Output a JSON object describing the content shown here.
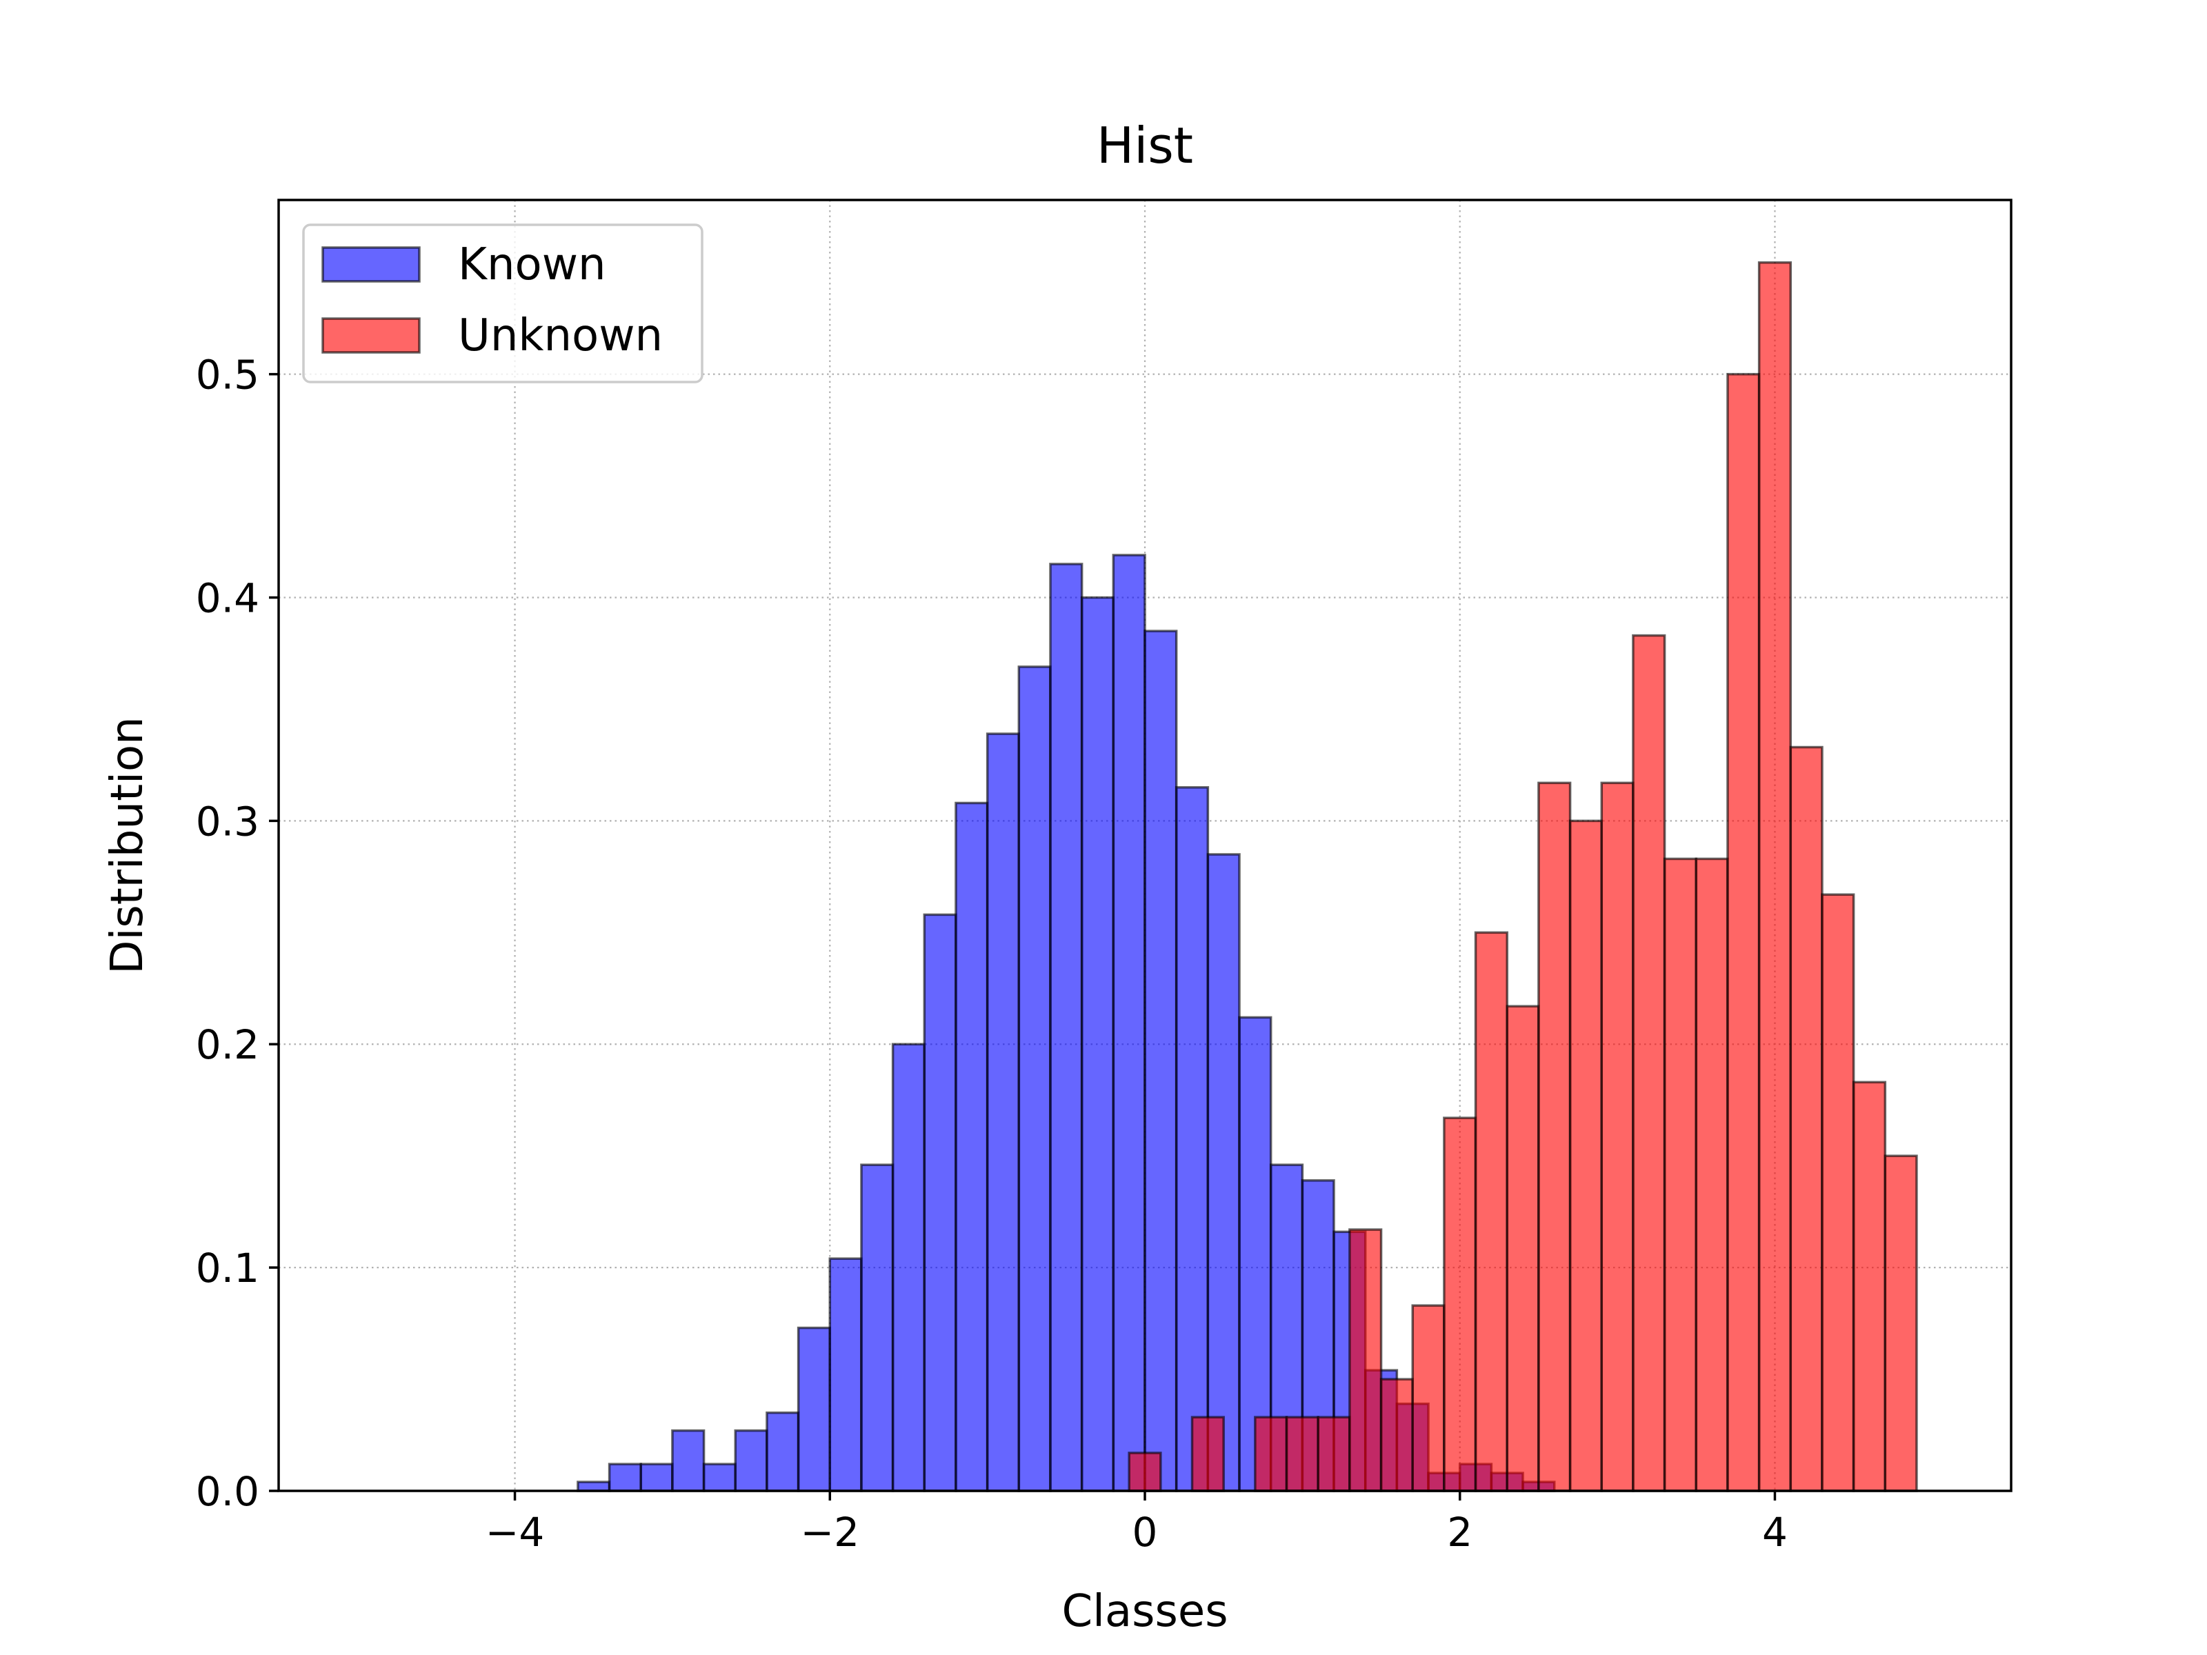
{
  "chart_data": {
    "type": "bar",
    "title": "Hist",
    "xlabel": "Classes",
    "ylabel": "Distribution",
    "xlim": [
      -5.5,
      5.5
    ],
    "ylim": [
      0,
      0.578
    ],
    "xticks": [
      -4,
      -2,
      0,
      2,
      4
    ],
    "xtick_labels": [
      "−4",
      "−2",
      "0",
      "2",
      "4"
    ],
    "yticks": [
      0.0,
      0.1,
      0.2,
      0.3,
      0.4,
      0.5
    ],
    "ytick_labels": [
      "0.0",
      "0.1",
      "0.2",
      "0.3",
      "0.4",
      "0.5"
    ],
    "grid": true,
    "legend_position": "upper-left",
    "colors": {
      "Known": "#0000ff",
      "Unknown": "#ff0000",
      "edge": "#000000"
    },
    "bar_alpha": 0.6,
    "series": [
      {
        "name": "Known",
        "bin_start": -5.0,
        "bin_width": 0.2,
        "values": [
          0,
          0,
          0,
          0,
          0,
          0,
          0,
          0.004,
          0.012,
          0.012,
          0.027,
          0.012,
          0.027,
          0.035,
          0.073,
          0.104,
          0.146,
          0.2,
          0.258,
          0.308,
          0.339,
          0.369,
          0.415,
          0.4,
          0.419,
          0.385,
          0.315,
          0.285,
          0.212,
          0.146,
          0.139,
          0.116,
          0.054,
          0.039,
          0.008,
          0.012,
          0.008,
          0.004,
          0,
          0,
          0,
          0,
          0,
          0,
          0,
          0,
          0,
          0,
          0,
          0
        ]
      },
      {
        "name": "Unknown",
        "bin_start": -0.1,
        "bin_width": 0.2,
        "values": [
          0.017,
          0,
          0.033,
          0,
          0.033,
          0.033,
          0.033,
          0.117,
          0.05,
          0.083,
          0.167,
          0.25,
          0.217,
          0.317,
          0.3,
          0.317,
          0.383,
          0.283,
          0.283,
          0.5,
          0.55,
          0.333,
          0.267,
          0.183,
          0.15
        ]
      }
    ]
  }
}
